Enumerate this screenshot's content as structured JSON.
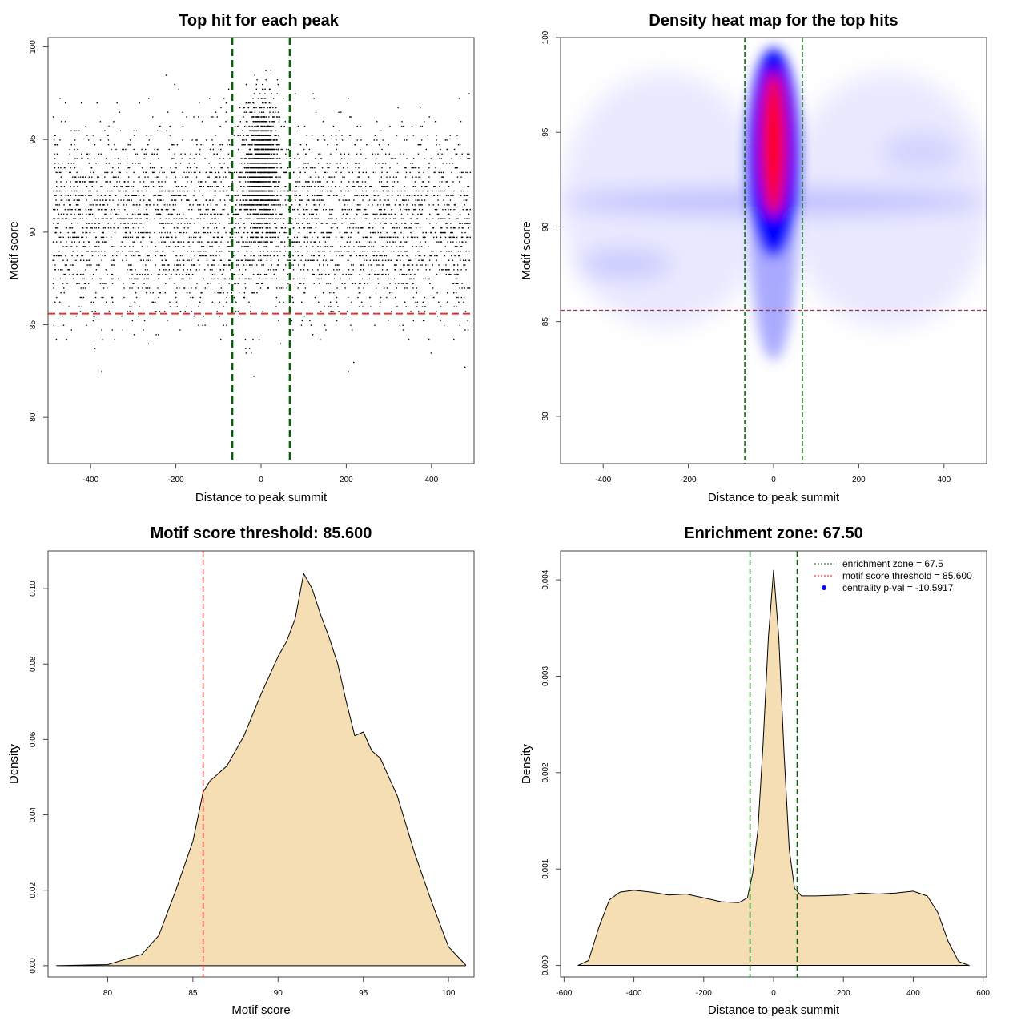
{
  "chart_data": [
    {
      "type": "scatter",
      "title": "Top hit for each peak",
      "xlabel": "Distance to peak summit",
      "ylabel": "Motif score",
      "xlim": [
        -500,
        500
      ],
      "ylim": [
        77.5,
        100.5
      ],
      "xticks": [
        -400,
        -200,
        0,
        200,
        400
      ],
      "yticks": [
        80,
        85,
        90,
        95,
        100
      ],
      "vlines": [
        -67.5,
        67.5
      ],
      "vline_color": "#006400",
      "hline": 85.6,
      "hline_color": "#e03030"
    },
    {
      "type": "heatmap",
      "title": "Density heat map for the top hits",
      "xlabel": "Distance to peak summit",
      "ylabel": "Motif score",
      "xlim": [
        -500,
        500
      ],
      "ylim": [
        77.5,
        100
      ],
      "xticks": [
        -400,
        -200,
        0,
        200,
        400
      ],
      "yticks": [
        80,
        85,
        90,
        95,
        100
      ],
      "vlines": [
        -67.5,
        67.5
      ],
      "vline_color": "#006400",
      "hline": 85.6,
      "hline_color": "#a03040",
      "colors": [
        "#ffffff",
        "#0000ff",
        "#ff0000"
      ]
    },
    {
      "type": "area",
      "title": "Motif score threshold: 85.600",
      "xlabel": "Motif score",
      "ylabel": "Density",
      "xlim": [
        76.5,
        101.5
      ],
      "ylim": [
        -0.003,
        0.11
      ],
      "xticks": [
        80,
        85,
        90,
        95,
        100
      ],
      "yticks": [
        "0.00",
        "0.02",
        "0.04",
        "0.06",
        "0.08",
        "0.10"
      ],
      "fill": "#f5deb3",
      "vline": 85.6,
      "vline_color": "#e03030",
      "x": [
        77,
        80,
        82,
        83,
        84,
        85,
        85.6,
        86,
        87,
        88,
        89,
        90,
        90.5,
        91,
        91.5,
        92,
        92.5,
        93,
        93.5,
        94,
        94.5,
        95,
        95.5,
        96,
        97,
        98,
        99,
        100,
        101
      ],
      "y": [
        0,
        0.0003,
        0.003,
        0.008,
        0.02,
        0.033,
        0.046,
        0.049,
        0.053,
        0.061,
        0.072,
        0.082,
        0.086,
        0.092,
        0.104,
        0.1,
        0.093,
        0.087,
        0.08,
        0.07,
        0.061,
        0.062,
        0.057,
        0.055,
        0.045,
        0.03,
        0.017,
        0.005,
        0.0002
      ]
    },
    {
      "type": "area",
      "title": "Enrichment zone: 67.50",
      "xlabel": "Distance to peak summit",
      "ylabel": "Density",
      "xlim": [
        -610,
        610
      ],
      "ylim": [
        -0.00012,
        0.0043
      ],
      "xticks": [
        -600,
        -400,
        -200,
        0,
        200,
        400,
        600
      ],
      "yticks": [
        "0.000",
        "0.001",
        "0.002",
        "0.003",
        "0.004"
      ],
      "fill": "#f5deb3",
      "vlines": [
        -67.5,
        67.5
      ],
      "vline_color": "#006400",
      "x": [
        -560,
        -530,
        -500,
        -470,
        -440,
        -400,
        -350,
        -300,
        -250,
        -200,
        -150,
        -100,
        -75,
        -60,
        -45,
        -30,
        -15,
        0,
        15,
        30,
        45,
        60,
        80,
        120,
        200,
        250,
        300,
        350,
        400,
        440,
        470,
        500,
        530,
        560
      ],
      "y": [
        0,
        5e-05,
        0.0004,
        0.00068,
        0.00076,
        0.00078,
        0.00076,
        0.00073,
        0.00074,
        0.0007,
        0.00066,
        0.00065,
        0.0007,
        0.00095,
        0.0014,
        0.0023,
        0.0034,
        0.0041,
        0.0034,
        0.0022,
        0.0012,
        0.0008,
        0.00072,
        0.00072,
        0.00073,
        0.00075,
        0.00074,
        0.00075,
        0.00077,
        0.00072,
        0.00055,
        0.00025,
        4e-05,
        0
      ],
      "legend": [
        {
          "label": "enrichment zone = 67.5",
          "color": "#006400",
          "style": "dotted"
        },
        {
          "label": "motif score threshold = 85.600",
          "color": "#ff0000",
          "style": "dotted"
        },
        {
          "label": "centrality p-val = -10.5917",
          "color": "#0000ff",
          "style": "point"
        }
      ],
      "legend_position": "top-right"
    }
  ]
}
